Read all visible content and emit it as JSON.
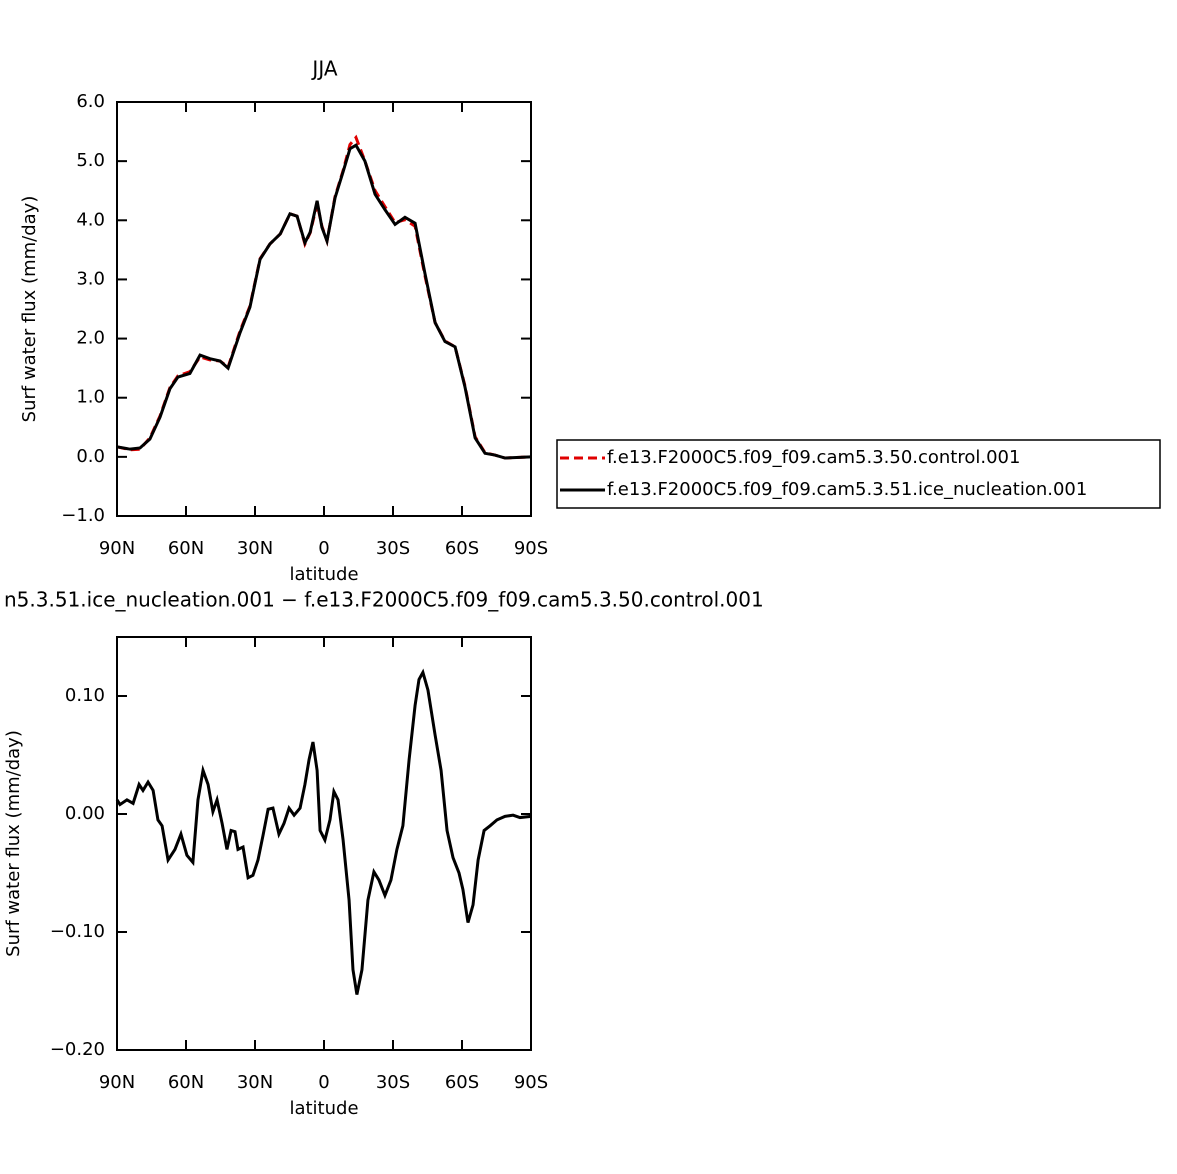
{
  "chart_data": [
    {
      "type": "line",
      "title": "JJA",
      "xlabel": "latitude",
      "ylabel": "Surf water flux (mm/day)",
      "xlim": [
        90,
        -90
      ],
      "ylim": [
        -1,
        6
      ],
      "xticks": [
        {
          "value": 90,
          "label": "90N"
        },
        {
          "value": 60,
          "label": "60N"
        },
        {
          "value": 30,
          "label": "30N"
        },
        0,
        {
          "value": -30,
          "label": "30S"
        },
        {
          "value": -60,
          "label": "60S"
        },
        {
          "value": -90,
          "label": "90S"
        }
      ],
      "yticks": [
        {
          "value": -1,
          "label": "−1.0"
        },
        {
          "value": 0,
          "label": "0.0"
        },
        {
          "value": 1,
          "label": "1.0"
        },
        {
          "value": 2,
          "label": "2.0"
        },
        {
          "value": 3,
          "label": "3.0"
        },
        {
          "value": 4,
          "label": "4.0"
        },
        {
          "value": 5,
          "label": "5.0"
        },
        {
          "value": 6,
          "label": "6.0"
        }
      ],
      "x": [
        90,
        84.3,
        80,
        75.7,
        71.3,
        67,
        63.5,
        58.3,
        53.9,
        49.6,
        45.2,
        41.7,
        36.5,
        32.2,
        27.8,
        23.5,
        19,
        14.8,
        11.7,
        8.3,
        6,
        3,
        0.9,
        -1.3,
        -4.8,
        -8.3,
        -11.3,
        -13.9,
        -17.8,
        -22.2,
        -26.5,
        -30.9,
        -35.2,
        -39.6,
        -43.9,
        -48.3,
        -52.6,
        -57,
        -61.3,
        -65.7,
        -70,
        -74.3,
        -78.7,
        -90
      ],
      "series": [
        {
          "name": "f.e13.F2000C5.f09_f09.cam5.3.50.control.001",
          "color": "#e00000",
          "line_style": "dashed",
          "values": [
            0.17,
            0.12,
            0.13,
            0.32,
            0.69,
            1.17,
            1.37,
            1.44,
            1.69,
            1.64,
            1.62,
            1.52,
            2.13,
            2.55,
            3.35,
            3.6,
            3.77,
            4.11,
            4.07,
            3.6,
            3.79,
            4.28,
            3.9,
            3.65,
            4.4,
            4.84,
            5.28,
            5.4,
            5.0,
            4.5,
            4.23,
            3.96,
            4.01,
            3.9,
            3.06,
            2.27,
            1.96,
            1.86,
            1.2,
            0.34,
            0.07,
            0.03,
            -0.02,
            0.0
          ]
        },
        {
          "name": "f.e13.F2000C5.f09_f09.cam5.3.51.ice_nucleation.001",
          "color": "#000000",
          "line_style": "solid",
          "values": [
            0.17,
            0.13,
            0.15,
            0.3,
            0.67,
            1.15,
            1.35,
            1.41,
            1.72,
            1.66,
            1.62,
            1.5,
            2.1,
            2.53,
            3.34,
            3.6,
            3.77,
            4.11,
            4.07,
            3.62,
            3.8,
            4.33,
            3.88,
            3.65,
            4.38,
            4.82,
            5.21,
            5.27,
            5.0,
            4.44,
            4.18,
            3.93,
            4.05,
            3.95,
            3.1,
            2.27,
            1.95,
            1.86,
            1.18,
            0.32,
            0.06,
            0.03,
            -0.02,
            0.0
          ]
        }
      ]
    },
    {
      "type": "line",
      "title": "n5.3.51.ice_nucleation.001 − f.e13.F2000C5.f09_f09.cam5.3.50.control.001",
      "xlabel": "latitude",
      "ylabel": "Surf water flux (mm/day)",
      "xlim": [
        90,
        -90
      ],
      "ylim": [
        -0.2,
        0.15
      ],
      "xticks": [
        {
          "value": 90,
          "label": "90N"
        },
        {
          "value": 60,
          "label": "60N"
        },
        {
          "value": 30,
          "label": "30N"
        },
        0,
        {
          "value": -30,
          "label": "30S"
        },
        {
          "value": -60,
          "label": "60S"
        },
        {
          "value": -90,
          "label": "90S"
        }
      ],
      "yticks": [
        {
          "value": -0.2,
          "label": "−0.20"
        },
        {
          "value": -0.1,
          "label": "−0.10"
        },
        {
          "value": 0,
          "label": "0.00"
        },
        {
          "value": 0.1,
          "label": "0.10"
        }
      ],
      "x": [
        90,
        88.7,
        85.7,
        83.0,
        80.4,
        78.7,
        76.5,
        74.3,
        72.2,
        70.4,
        67.8,
        64.8,
        62.2,
        59.6,
        57.0,
        54.8,
        52.6,
        50.4,
        48.3,
        46.5,
        44.3,
        42.2,
        40.4,
        38.7,
        37.4,
        35.2,
        33.0,
        30.9,
        28.7,
        26.5,
        24.3,
        22.2,
        19.6,
        17.4,
        15.2,
        13.0,
        10.4,
        8.3,
        6.5,
        4.8,
        3.0,
        1.7,
        -0.4,
        -2.6,
        -4.3,
        -6.1,
        -8.3,
        -10.9,
        -12.6,
        -14.3,
        -16.5,
        -19.1,
        -21.7,
        -23.9,
        -26.5,
        -29.1,
        -31.7,
        -34.3,
        -37.0,
        -39.6,
        -41.3,
        -43.0,
        -45.2,
        -48.3,
        -50.9,
        -53.5,
        -56.1,
        -58.7,
        -60.4,
        -62.6,
        -64.8,
        -67.0,
        -69.6,
        -72.2,
        -75.2,
        -78.7,
        -82.2,
        -85.2,
        -90
      ],
      "series": [
        {
          "color": "#000000",
          "line_style": "solid",
          "values": [
            0.012,
            0.008,
            0.012,
            0.009,
            0.025,
            0.02,
            0.027,
            0.02,
            -0.005,
            -0.01,
            -0.039,
            -0.03,
            -0.017,
            -0.035,
            -0.041,
            0.012,
            0.037,
            0.025,
            0.002,
            0.012,
            -0.008,
            -0.03,
            -0.014,
            -0.015,
            -0.03,
            -0.028,
            -0.054,
            -0.052,
            -0.039,
            -0.018,
            0.004,
            0.005,
            -0.017,
            -0.008,
            0.005,
            -0.001,
            0.005,
            0.025,
            0.046,
            0.061,
            0.037,
            -0.014,
            -0.022,
            -0.005,
            0.019,
            0.012,
            -0.022,
            -0.073,
            -0.132,
            -0.153,
            -0.132,
            -0.073,
            -0.049,
            -0.056,
            -0.069,
            -0.056,
            -0.03,
            -0.01,
            0.046,
            0.092,
            0.114,
            0.12,
            0.105,
            0.067,
            0.037,
            -0.014,
            -0.037,
            -0.05,
            -0.064,
            -0.092,
            -0.077,
            -0.039,
            -0.014,
            -0.01,
            -0.005,
            -0.002,
            -0.001,
            -0.003,
            -0.002
          ]
        }
      ]
    }
  ]
}
